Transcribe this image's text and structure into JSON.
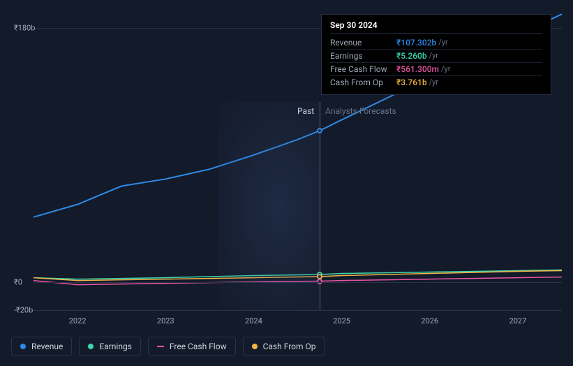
{
  "chart": {
    "type": "line",
    "background_color": "#131a2a",
    "grid_color": "#2a3248",
    "text_color": "#a0a8b8",
    "label_fontsize": 11,
    "y_axis": {
      "ticks": [
        {
          "label": "₹180b",
          "value": 180
        },
        {
          "label": "₹0",
          "value": 0
        },
        {
          "label": "-₹20b",
          "value": -20
        }
      ],
      "min": -20,
      "max": 200
    },
    "x_axis": {
      "ticks": [
        "2022",
        "2023",
        "2024",
        "2025",
        "2026",
        "2027"
      ],
      "min": 2021.5,
      "max": 2027.5
    },
    "divider": {
      "past_label": "Past",
      "forecast_label": "Analysts Forecasts",
      "x_value": 2024.75
    },
    "series": [
      {
        "name": "Revenue",
        "color": "#2e8ae6",
        "line_width": 2,
        "data": [
          [
            2021.5,
            46
          ],
          [
            2022.0,
            55
          ],
          [
            2022.5,
            68
          ],
          [
            2023.0,
            73
          ],
          [
            2023.5,
            80
          ],
          [
            2024.0,
            90
          ],
          [
            2024.5,
            101
          ],
          [
            2024.75,
            107.3
          ],
          [
            2025.0,
            115
          ],
          [
            2025.5,
            130
          ],
          [
            2026.0,
            145
          ],
          [
            2026.5,
            160
          ],
          [
            2027.0,
            175
          ],
          [
            2027.5,
            190
          ]
        ]
      },
      {
        "name": "Earnings",
        "color": "#3dd9b0",
        "line_width": 1.5,
        "data": [
          [
            2021.5,
            3
          ],
          [
            2022.0,
            2
          ],
          [
            2023.0,
            3
          ],
          [
            2024.0,
            4.5
          ],
          [
            2024.75,
            5.26
          ],
          [
            2025.0,
            6
          ],
          [
            2026.0,
            7
          ],
          [
            2027.0,
            8
          ],
          [
            2027.5,
            8.5
          ]
        ]
      },
      {
        "name": "Free Cash Flow",
        "color": "#e855a5",
        "line_width": 1.5,
        "data": [
          [
            2021.5,
            1
          ],
          [
            2022.0,
            -2
          ],
          [
            2023.0,
            -1
          ],
          [
            2024.0,
            0
          ],
          [
            2024.75,
            0.56
          ],
          [
            2025.0,
            1
          ],
          [
            2026.0,
            2
          ],
          [
            2027.0,
            3
          ],
          [
            2027.5,
            3.5
          ]
        ]
      },
      {
        "name": "Cash From Op",
        "color": "#f0b445",
        "line_width": 1.5,
        "data": [
          [
            2021.5,
            3
          ],
          [
            2022.0,
            1
          ],
          [
            2023.0,
            2
          ],
          [
            2024.0,
            3
          ],
          [
            2024.75,
            3.76
          ],
          [
            2025.0,
            4.5
          ],
          [
            2026.0,
            6
          ],
          [
            2027.0,
            7.5
          ],
          [
            2027.5,
            8
          ]
        ]
      }
    ],
    "cursor_x": 2024.75,
    "markers": [
      {
        "series": 0,
        "color": "#2e8ae6",
        "x": 2024.75,
        "y": 107.3
      },
      {
        "series": 1,
        "color": "#3dd9b0",
        "x": 2024.75,
        "y": 5.26
      },
      {
        "series": 2,
        "color": "#e855a5",
        "x": 2024.75,
        "y": 0.56
      },
      {
        "series": 3,
        "color": "#f0b445",
        "x": 2024.75,
        "y": 3.76
      }
    ]
  },
  "tooltip": {
    "date": "Sep 30 2024",
    "rows": [
      {
        "label": "Revenue",
        "value": "₹107.302b",
        "unit": "/yr",
        "color": "#2e8ae6"
      },
      {
        "label": "Earnings",
        "value": "₹5.260b",
        "unit": "/yr",
        "color": "#3dd9b0"
      },
      {
        "label": "Free Cash Flow",
        "value": "₹561.300m",
        "unit": "/yr",
        "color": "#e855a5"
      },
      {
        "label": "Cash From Op",
        "value": "₹3.761b",
        "unit": "/yr",
        "color": "#f0b445"
      }
    ]
  },
  "legend": [
    {
      "label": "Revenue",
      "color": "#2e8ae6",
      "shape": "dot"
    },
    {
      "label": "Earnings",
      "color": "#3dd9b0",
      "shape": "dot"
    },
    {
      "label": "Free Cash Flow",
      "color": "#e855a5",
      "shape": "line"
    },
    {
      "label": "Cash From Op",
      "color": "#f0b445",
      "shape": "dot"
    }
  ]
}
